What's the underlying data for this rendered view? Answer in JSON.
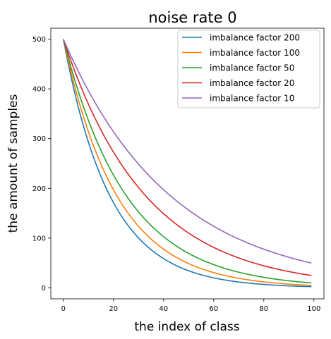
{
  "chart_data": {
    "type": "line",
    "title": "noise rate 0",
    "xlabel": "the index of class",
    "ylabel": "the amount of samples",
    "xlim": [
      -5,
      104
    ],
    "ylim": [
      -22,
      522
    ],
    "xticks": [
      0,
      20,
      40,
      60,
      80,
      100
    ],
    "yticks": [
      0,
      100,
      200,
      300,
      400,
      500
    ],
    "num_points": 100,
    "max_value": 500,
    "legend_position": "top-right",
    "grid": false,
    "series": [
      {
        "name": "imbalance factor 200",
        "imbalance_factor": 200,
        "color": "#1f77b4"
      },
      {
        "name": "imbalance factor 100",
        "imbalance_factor": 100,
        "color": "#ff7f0e"
      },
      {
        "name": "imbalance factor 50",
        "imbalance_factor": 50,
        "color": "#2ca02c"
      },
      {
        "name": "imbalance factor 20",
        "imbalance_factor": 20,
        "color": "#d62728"
      },
      {
        "name": "imbalance factor 10",
        "imbalance_factor": 10,
        "color": "#9467bd"
      }
    ]
  }
}
